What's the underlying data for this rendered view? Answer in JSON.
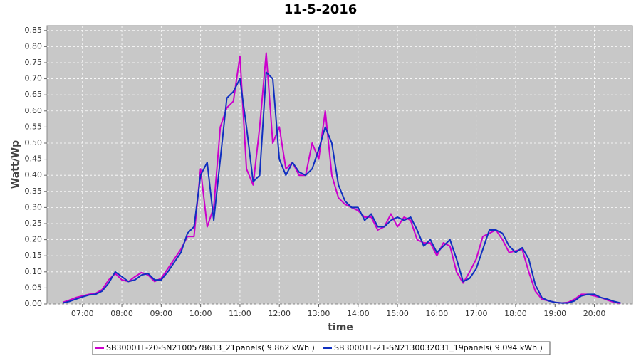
{
  "chart_data": {
    "type": "line",
    "title": "11-5-2016",
    "x_label": "time",
    "y_label": "Watt/Wp",
    "x": [
      "06:30",
      "06:40",
      "06:50",
      "07:00",
      "07:10",
      "07:20",
      "07:30",
      "07:40",
      "07:50",
      "08:00",
      "08:10",
      "08:20",
      "08:30",
      "08:40",
      "08:50",
      "09:00",
      "09:10",
      "09:20",
      "09:30",
      "09:40",
      "09:50",
      "10:00",
      "10:10",
      "10:20",
      "10:30",
      "10:40",
      "10:50",
      "11:00",
      "11:10",
      "11:20",
      "11:30",
      "11:40",
      "11:50",
      "12:00",
      "12:10",
      "12:20",
      "12:30",
      "12:40",
      "12:50",
      "13:00",
      "13:10",
      "13:20",
      "13:30",
      "13:40",
      "13:50",
      "14:00",
      "14:10",
      "14:20",
      "14:30",
      "14:40",
      "14:50",
      "15:00",
      "15:10",
      "15:20",
      "15:30",
      "15:40",
      "15:50",
      "16:00",
      "16:10",
      "16:20",
      "16:30",
      "16:40",
      "16:50",
      "17:00",
      "17:10",
      "17:20",
      "17:30",
      "17:40",
      "17:50",
      "18:00",
      "18:10",
      "18:20",
      "18:30",
      "18:40",
      "18:50",
      "19:00",
      "19:10",
      "19:20",
      "19:30",
      "19:40",
      "19:50",
      "20:00",
      "20:10",
      "20:20",
      "20:30",
      "20:40"
    ],
    "series": [
      {
        "name": "SB3000TL-20-SN2100578613_21panels( 9.862 kWh )",
        "color": "#cc00cc",
        "values": [
          0.005,
          0.012,
          0.02,
          0.025,
          0.03,
          0.033,
          0.045,
          0.075,
          0.095,
          0.075,
          0.07,
          0.085,
          0.098,
          0.09,
          0.07,
          0.08,
          0.11,
          0.14,
          0.17,
          0.21,
          0.21,
          0.42,
          0.24,
          0.3,
          0.55,
          0.61,
          0.63,
          0.77,
          0.42,
          0.37,
          0.55,
          0.78,
          0.5,
          0.55,
          0.42,
          0.44,
          0.4,
          0.4,
          0.5,
          0.45,
          0.6,
          0.4,
          0.33,
          0.31,
          0.3,
          0.29,
          0.27,
          0.27,
          0.23,
          0.24,
          0.28,
          0.24,
          0.27,
          0.26,
          0.2,
          0.19,
          0.19,
          0.15,
          0.19,
          0.18,
          0.1,
          0.065,
          0.1,
          0.14,
          0.21,
          0.22,
          0.23,
          0.2,
          0.16,
          0.165,
          0.17,
          0.1,
          0.04,
          0.015,
          0.01,
          0.005,
          0.003,
          0.005,
          0.015,
          0.03,
          0.03,
          0.025,
          0.02,
          0.012,
          0.005,
          0.002
        ]
      },
      {
        "name": "SB3000TL-21-SN2130032031_19panels( 9.094 kWh )",
        "color": "#1030c0",
        "values": [
          0.003,
          0.008,
          0.015,
          0.022,
          0.028,
          0.03,
          0.04,
          0.065,
          0.1,
          0.085,
          0.07,
          0.075,
          0.09,
          0.095,
          0.075,
          0.075,
          0.1,
          0.13,
          0.16,
          0.22,
          0.24,
          0.4,
          0.44,
          0.26,
          0.45,
          0.64,
          0.66,
          0.7,
          0.55,
          0.38,
          0.4,
          0.72,
          0.7,
          0.45,
          0.4,
          0.44,
          0.41,
          0.4,
          0.42,
          0.48,
          0.55,
          0.5,
          0.37,
          0.32,
          0.3,
          0.3,
          0.26,
          0.28,
          0.24,
          0.24,
          0.26,
          0.27,
          0.26,
          0.27,
          0.23,
          0.18,
          0.2,
          0.16,
          0.18,
          0.2,
          0.14,
          0.07,
          0.08,
          0.11,
          0.17,
          0.23,
          0.23,
          0.22,
          0.18,
          0.16,
          0.175,
          0.14,
          0.06,
          0.02,
          0.01,
          0.005,
          0.003,
          0.003,
          0.01,
          0.025,
          0.03,
          0.03,
          0.02,
          0.015,
          0.008,
          0.003
        ]
      }
    ],
    "xlim": [
      "06:06",
      "20:58"
    ],
    "xticks": [
      "07:00",
      "08:00",
      "09:00",
      "10:00",
      "11:00",
      "12:00",
      "13:00",
      "14:00",
      "15:00",
      "16:00",
      "17:00",
      "18:00",
      "19:00",
      "20:00"
    ],
    "ylim": [
      0,
      0.865
    ],
    "yticks": [
      {
        "value": 0,
        "label": "0.00"
      },
      0.05,
      {
        "value": 0.1,
        "label": "0.10"
      },
      0.15,
      {
        "value": 0.2,
        "label": "0.20"
      },
      0.25,
      {
        "value": 0.3,
        "label": "0.30"
      },
      0.35,
      {
        "value": 0.4,
        "label": "0.40"
      },
      0.45,
      {
        "value": 0.5,
        "label": "0.50"
      },
      0.55,
      {
        "value": 0.6,
        "label": "0.60"
      },
      0.65,
      {
        "value": 0.7,
        "label": "0.70"
      },
      0.75,
      {
        "value": 0.8,
        "label": "0.80"
      },
      0.85
    ],
    "grid": true
  }
}
